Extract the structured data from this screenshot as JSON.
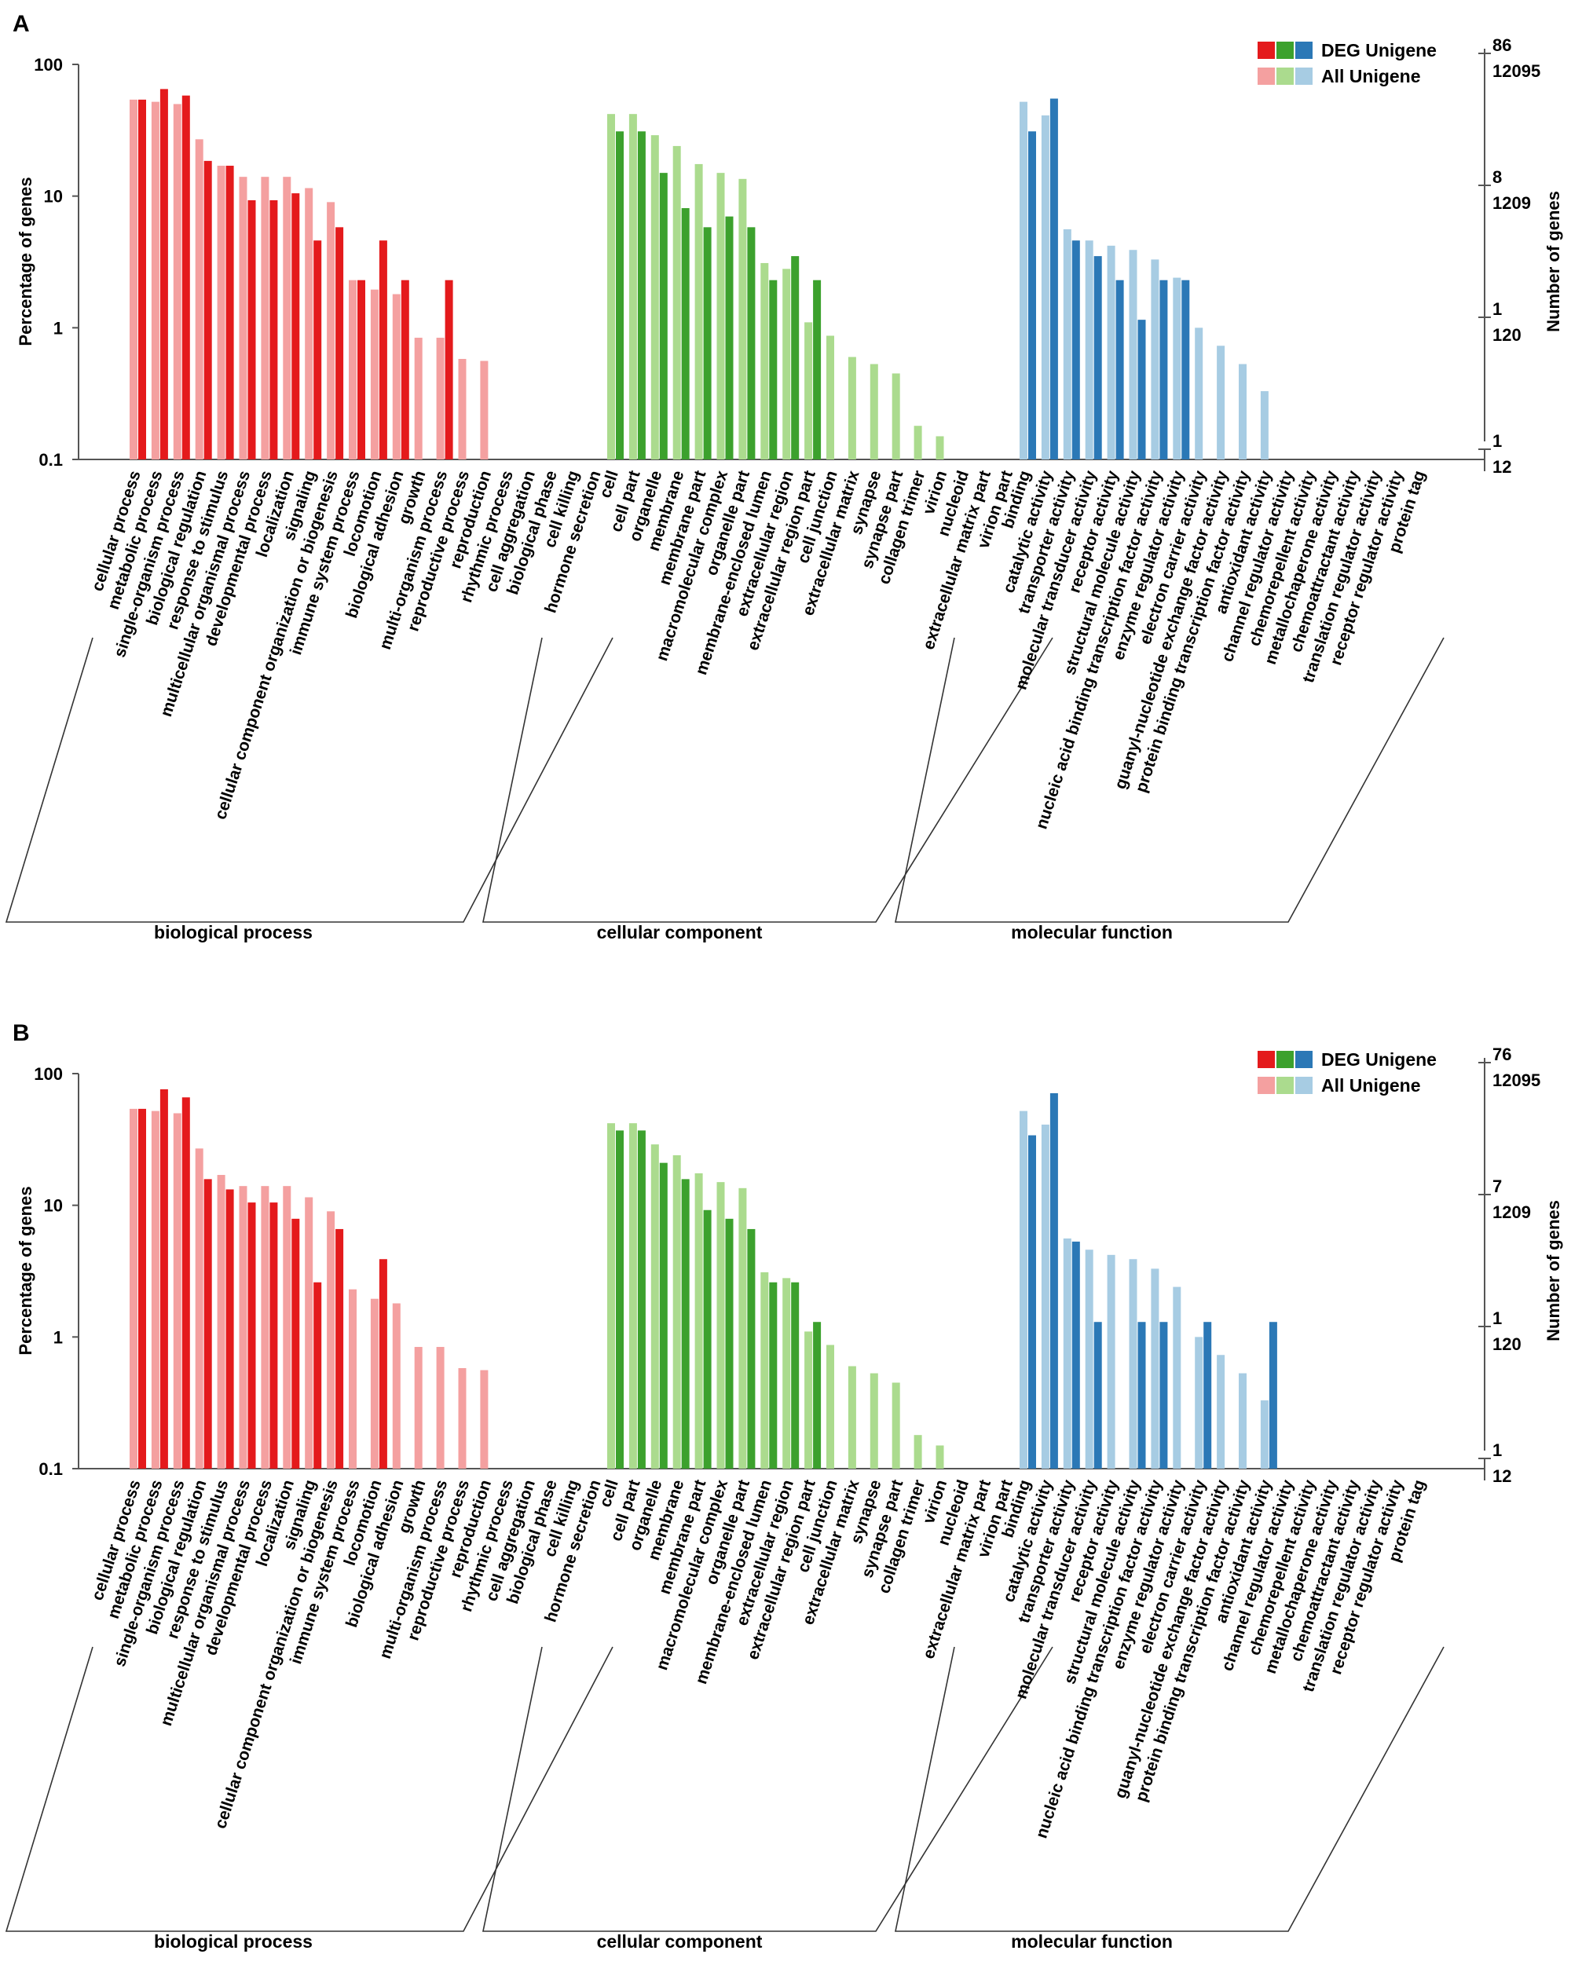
{
  "colors": {
    "bp_all": "#f4a0a0",
    "bp_deg": "#e41a1c",
    "cc_all": "#abdb8e",
    "cc_deg": "#3ca12d",
    "mf_all": "#a7cce3",
    "mf_deg": "#2b78b6"
  },
  "chart_data": [
    {
      "panel_label": "A",
      "type": "bar",
      "scale": "log",
      "ylim": [
        0.1,
        100
      ],
      "ylabel": "Percentage of genes",
      "y2label": "Number of genes",
      "yticks": [
        "100",
        "10",
        "1",
        "0.1"
      ],
      "y2_deg": [
        "86",
        "8",
        "1",
        "1"
      ],
      "y2_all": [
        "12095",
        "1209",
        "120",
        "12"
      ],
      "legend": {
        "deg": "DEG Unigene",
        "all": "All Unigene"
      },
      "groups": [
        {
          "key": "bp",
          "label": "biological process",
          "categories": [
            "cellular process",
            "metabolic process",
            "single-organism process",
            "biological regulation",
            "response to stimulus",
            "multicellular organismal process",
            "developmental process",
            "localization",
            "signaling",
            "cellular component organization or biogenesis",
            "immune system process",
            "locomotion",
            "biological adhesion",
            "growth",
            "multi-organism process",
            "reproductive process",
            "reproduction",
            "rhythmic process",
            "cell aggregation",
            "biological phase",
            "cell killing",
            "hormone secretion"
          ],
          "all": [
            54,
            52,
            50,
            27,
            17,
            14,
            14,
            14,
            11.5,
            9,
            2.3,
            1.95,
            1.8,
            0.84,
            0.84,
            0.58,
            0.56,
            0,
            0,
            0,
            0,
            0
          ],
          "deg": [
            54,
            65,
            58,
            18.5,
            17,
            9.3,
            9.3,
            10.5,
            4.6,
            5.8,
            2.3,
            4.6,
            2.3,
            0,
            2.3,
            0,
            0,
            0,
            0,
            0,
            0,
            0
          ]
        },
        {
          "key": "cc",
          "label": "cellular component",
          "categories": [
            "cell",
            "cell part",
            "organelle",
            "membrane",
            "membrane part",
            "macromolecular complex",
            "organelle part",
            "membrane-enclosed lumen",
            "extracellular region",
            "extracellular region part",
            "cell junction",
            "extracellular matrix",
            "synapse",
            "synapse part",
            "collagen trimer",
            "virion",
            "nucleoid",
            "extracellular matrix part",
            "virion part"
          ],
          "all": [
            42,
            42,
            29,
            24,
            17.5,
            15,
            13.5,
            3.1,
            2.8,
            1.1,
            0.87,
            0.6,
            0.53,
            0.45,
            0.18,
            0.15,
            0,
            0,
            0
          ],
          "deg": [
            31,
            31,
            15,
            8.1,
            5.8,
            7,
            5.8,
            2.3,
            3.5,
            2.3,
            0,
            0,
            0,
            0,
            0,
            0,
            0,
            0,
            0
          ]
        },
        {
          "key": "mf",
          "label": "molecular function",
          "categories": [
            "binding",
            "catalytic activity",
            "transporter activity",
            "molecular transducer activity",
            "receptor activity",
            "structural molecule activity",
            "nucleic acid binding transcription factor activity",
            "enzyme regulator activity",
            "electron carrier activity",
            "guanyl-nucleotide exchange factor activity",
            "protein binding transcription factor activity",
            "antioxidant activity",
            "channel regulator activity",
            "chemorepellent activity",
            "metallochaperone activity",
            "chemoattractant activity",
            "translation regulator activity",
            "receptor regulator activity",
            "protein tag"
          ],
          "all": [
            52,
            41,
            5.6,
            4.6,
            4.2,
            3.9,
            3.3,
            2.4,
            1,
            0.73,
            0.53,
            0.33,
            0,
            0,
            0,
            0,
            0,
            0,
            0
          ],
          "deg": [
            31,
            55,
            4.6,
            3.5,
            2.3,
            1.15,
            2.3,
            2.3,
            0,
            0,
            0,
            0,
            0,
            0,
            0,
            0,
            0,
            0,
            0
          ]
        }
      ]
    },
    {
      "panel_label": "B",
      "type": "bar",
      "scale": "log",
      "ylim": [
        0.1,
        100
      ],
      "ylabel": "Percentage of genes",
      "y2label": "Number of genes",
      "yticks": [
        "100",
        "10",
        "1",
        "0.1"
      ],
      "y2_deg": [
        "76",
        "7",
        "1",
        "1"
      ],
      "y2_all": [
        "12095",
        "1209",
        "120",
        "12"
      ],
      "legend": {
        "deg": "DEG Unigene",
        "all": "All Unigene"
      },
      "groups": [
        {
          "key": "bp",
          "label": "biological process",
          "categories": [
            "cellular process",
            "metabolic process",
            "single-organism process",
            "biological regulation",
            "response to stimulus",
            "multicellular organismal process",
            "developmental process",
            "localization",
            "signaling",
            "cellular component organization or biogenesis",
            "immune system process",
            "locomotion",
            "biological adhesion",
            "growth",
            "multi-organism process",
            "reproductive process",
            "reproduction",
            "rhythmic process",
            "cell aggregation",
            "biological phase",
            "cell killing",
            "hormone secretion"
          ],
          "all": [
            54,
            52,
            50,
            27,
            17,
            14,
            14,
            14,
            11.5,
            9,
            2.3,
            1.95,
            1.8,
            0.84,
            0.84,
            0.58,
            0.56,
            0,
            0,
            0,
            0,
            0
          ],
          "deg": [
            54,
            76,
            66,
            15.8,
            13.2,
            10.5,
            10.5,
            7.9,
            2.6,
            6.6,
            0,
            3.9,
            0,
            0,
            0,
            0,
            0,
            0,
            0,
            0,
            0,
            0
          ]
        },
        {
          "key": "cc",
          "label": "cellular component",
          "categories": [
            "cell",
            "cell part",
            "organelle",
            "membrane",
            "membrane part",
            "macromolecular complex",
            "organelle part",
            "membrane-enclosed lumen",
            "extracellular region",
            "extracellular region part",
            "cell junction",
            "extracellular matrix",
            "synapse",
            "synapse part",
            "collagen trimer",
            "virion",
            "nucleoid",
            "extracellular matrix part",
            "virion part"
          ],
          "all": [
            42,
            42,
            29,
            24,
            17.5,
            15,
            13.5,
            3.1,
            2.8,
            1.1,
            0.87,
            0.6,
            0.53,
            0.45,
            0.18,
            0.15,
            0,
            0,
            0
          ],
          "deg": [
            37,
            37,
            21,
            15.8,
            9.2,
            7.9,
            6.6,
            2.6,
            2.6,
            1.3,
            0,
            0,
            0,
            0,
            0,
            0,
            0,
            0,
            0
          ]
        },
        {
          "key": "mf",
          "label": "molecular function",
          "categories": [
            "binding",
            "catalytic activity",
            "transporter activity",
            "molecular transducer activity",
            "receptor activity",
            "structural molecule activity",
            "nucleic acid binding transcription factor activity",
            "enzyme regulator activity",
            "electron carrier activity",
            "guanyl-nucleotide exchange factor activity",
            "protein binding transcription factor activity",
            "antioxidant activity",
            "channel regulator activity",
            "chemorepellent activity",
            "metallochaperone activity",
            "chemoattractant activity",
            "translation regulator activity",
            "receptor regulator activity",
            "protein tag"
          ],
          "all": [
            52,
            41,
            5.6,
            4.6,
            4.2,
            3.9,
            3.3,
            2.4,
            1,
            0.73,
            0.53,
            0.33,
            0,
            0,
            0,
            0,
            0,
            0,
            0
          ],
          "deg": [
            34,
            71,
            5.3,
            1.3,
            0,
            1.3,
            1.3,
            0,
            1.3,
            0,
            0,
            1.3,
            0,
            0,
            0,
            0,
            0,
            0,
            0
          ]
        }
      ]
    }
  ]
}
